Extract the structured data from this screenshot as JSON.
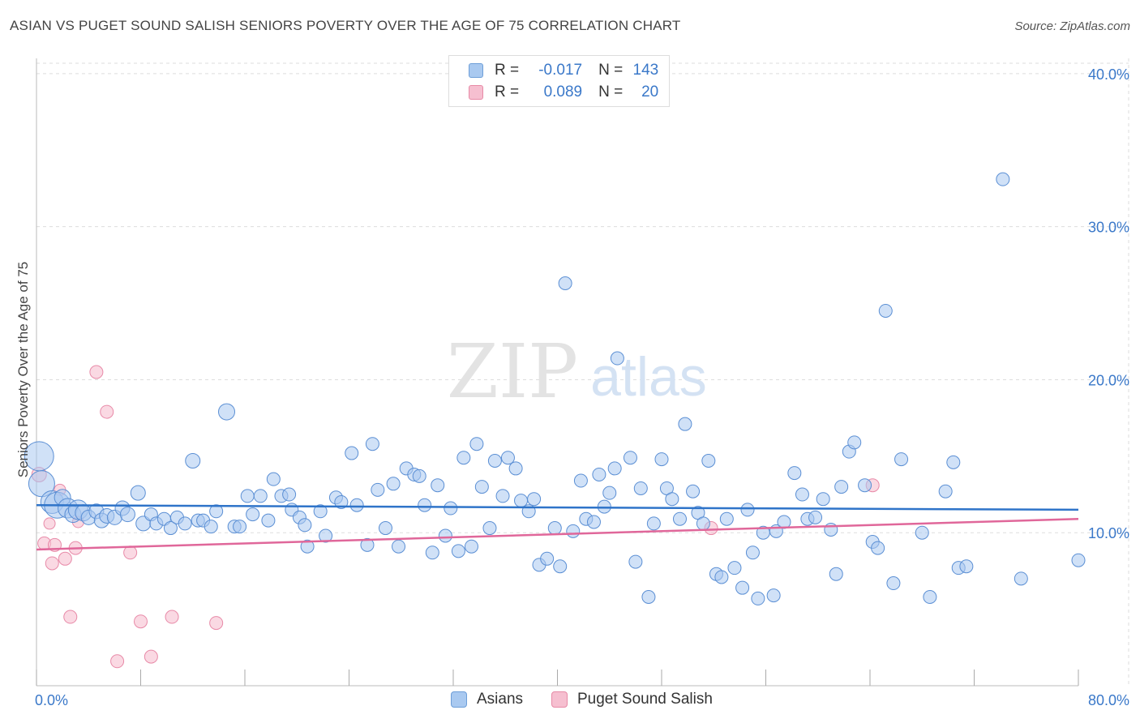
{
  "header": {
    "title": "ASIAN VS PUGET SOUND SALISH SENIORS POVERTY OVER THE AGE OF 75 CORRELATION CHART",
    "source": "Source: ZipAtlas.com"
  },
  "watermark": {
    "zip": "ZIP",
    "atlas": "atlas"
  },
  "legend": {
    "rows": [
      {
        "r_label": "R =",
        "r_value": "-0.017",
        "n_label": "N =",
        "n_value": "143",
        "color": "#a9c9f0",
        "border": "#6d9ed8"
      },
      {
        "r_label": "R =",
        "r_value": "0.089",
        "n_label": "N =",
        "n_value": "20",
        "color": "#f6bfd0",
        "border": "#e78aa6"
      }
    ]
  },
  "bottom_legend": {
    "asians": "Asians",
    "salish": "Puget Sound Salish"
  },
  "colors": {
    "asian_fill": "#a9c9f0",
    "asian_stroke": "#5b8fd4",
    "asian_line": "#2f74c9",
    "salish_fill": "#f6bfd0",
    "salish_stroke": "#e88aa8",
    "salish_line": "#e0679a",
    "tick_label": "#3a78c9",
    "grid": "#dddddd"
  },
  "chart_data": {
    "type": "scatter",
    "title": "ASIAN VS PUGET SOUND SALISH SENIORS POVERTY OVER THE AGE OF 75 CORRELATION CHART",
    "ylabel": "Seniors Poverty Over the Age of 75",
    "xlabel": "",
    "xlim": [
      0,
      80
    ],
    "ylim": [
      0,
      41
    ],
    "x_tick_labels": [
      "0.0%",
      "80.0%"
    ],
    "y_ticks": [
      10,
      20,
      30,
      40
    ],
    "y_tick_labels": [
      "10.0%",
      "20.0%",
      "30.0%",
      "40.0%"
    ],
    "grid": true,
    "legend_position": "top-center",
    "series": [
      {
        "name": "Asians",
        "r": -0.017,
        "n": 143,
        "trend": [
          [
            0,
            11.8
          ],
          [
            80,
            11.5
          ]
        ],
        "points": [
          [
            0.2,
            15.0,
            18
          ],
          [
            0.4,
            13.2,
            16
          ],
          [
            1.2,
            12.0,
            14
          ],
          [
            1.6,
            11.8,
            16
          ],
          [
            2.0,
            12.3,
            10
          ],
          [
            2.4,
            11.6,
            12
          ],
          [
            2.8,
            11.2,
            10
          ],
          [
            3.2,
            11.5,
            12
          ],
          [
            3.6,
            11.3,
            10
          ],
          [
            4.0,
            11.0,
            9
          ],
          [
            4.6,
            11.4,
            9
          ],
          [
            5.0,
            10.8,
            9
          ],
          [
            5.4,
            11.1,
            9
          ],
          [
            6.0,
            11.0,
            9
          ],
          [
            6.6,
            11.6,
            9
          ],
          [
            7.0,
            11.2,
            9
          ],
          [
            7.8,
            12.6,
            9
          ],
          [
            8.2,
            10.6,
            9
          ],
          [
            8.8,
            11.2,
            8
          ],
          [
            9.2,
            10.6,
            8
          ],
          [
            9.8,
            10.9,
            8
          ],
          [
            10.3,
            10.3,
            8
          ],
          [
            10.8,
            11.0,
            8
          ],
          [
            11.4,
            10.6,
            8
          ],
          [
            12.0,
            14.7,
            9
          ],
          [
            12.4,
            10.8,
            8
          ],
          [
            12.8,
            10.8,
            8
          ],
          [
            13.4,
            10.4,
            8
          ],
          [
            13.8,
            11.4,
            8
          ],
          [
            14.6,
            17.9,
            10
          ],
          [
            15.2,
            10.4,
            8
          ],
          [
            15.6,
            10.4,
            8
          ],
          [
            16.2,
            12.4,
            8
          ],
          [
            16.6,
            11.2,
            8
          ],
          [
            17.2,
            12.4,
            8
          ],
          [
            17.8,
            10.8,
            8
          ],
          [
            18.2,
            13.5,
            8
          ],
          [
            18.8,
            12.4,
            8
          ],
          [
            19.4,
            12.5,
            8
          ],
          [
            19.6,
            11.5,
            8
          ],
          [
            20.2,
            11.0,
            8
          ],
          [
            20.6,
            10.5,
            8
          ],
          [
            20.8,
            9.1,
            8
          ],
          [
            21.8,
            11.4,
            8
          ],
          [
            22.2,
            9.8,
            8
          ],
          [
            23.0,
            12.3,
            8
          ],
          [
            23.4,
            12.0,
            8
          ],
          [
            24.2,
            15.2,
            8
          ],
          [
            24.6,
            11.8,
            8
          ],
          [
            25.4,
            9.2,
            8
          ],
          [
            25.8,
            15.8,
            8
          ],
          [
            26.2,
            12.8,
            8
          ],
          [
            26.8,
            10.3,
            8
          ],
          [
            27.4,
            13.2,
            8
          ],
          [
            27.8,
            9.1,
            8
          ],
          [
            28.4,
            14.2,
            8
          ],
          [
            29.0,
            13.8,
            8
          ],
          [
            29.4,
            13.7,
            8
          ],
          [
            29.8,
            11.8,
            8
          ],
          [
            30.4,
            8.7,
            8
          ],
          [
            30.8,
            13.1,
            8
          ],
          [
            31.4,
            9.8,
            8
          ],
          [
            31.8,
            11.6,
            8
          ],
          [
            32.4,
            8.8,
            8
          ],
          [
            32.8,
            14.9,
            8
          ],
          [
            33.4,
            9.1,
            8
          ],
          [
            33.8,
            15.8,
            8
          ],
          [
            34.2,
            13.0,
            8
          ],
          [
            34.8,
            10.3,
            8
          ],
          [
            35.2,
            14.7,
            8
          ],
          [
            35.8,
            12.4,
            8
          ],
          [
            36.2,
            14.9,
            8
          ],
          [
            36.8,
            14.2,
            8
          ],
          [
            37.2,
            12.1,
            8
          ],
          [
            37.8,
            11.4,
            8
          ],
          [
            38.2,
            12.2,
            8
          ],
          [
            38.6,
            7.9,
            8
          ],
          [
            39.2,
            8.3,
            8
          ],
          [
            39.8,
            10.3,
            8
          ],
          [
            40.2,
            7.8,
            8
          ],
          [
            40.6,
            26.3,
            8
          ],
          [
            41.2,
            10.1,
            8
          ],
          [
            41.8,
            13.4,
            8
          ],
          [
            42.2,
            10.9,
            8
          ],
          [
            42.8,
            10.7,
            8
          ],
          [
            43.2,
            13.8,
            8
          ],
          [
            43.6,
            11.7,
            8
          ],
          [
            44.0,
            12.6,
            8
          ],
          [
            44.4,
            14.2,
            8
          ],
          [
            44.6,
            21.4,
            8
          ],
          [
            45.6,
            14.9,
            8
          ],
          [
            46.0,
            8.1,
            8
          ],
          [
            46.4,
            12.9,
            8
          ],
          [
            47.0,
            5.8,
            8
          ],
          [
            47.4,
            10.6,
            8
          ],
          [
            48.0,
            14.8,
            8
          ],
          [
            48.4,
            12.9,
            8
          ],
          [
            48.8,
            12.2,
            8
          ],
          [
            49.4,
            10.9,
            8
          ],
          [
            49.8,
            17.1,
            8
          ],
          [
            50.4,
            12.7,
            8
          ],
          [
            50.8,
            11.3,
            8
          ],
          [
            51.2,
            10.6,
            8
          ],
          [
            51.6,
            14.7,
            8
          ],
          [
            52.2,
            7.3,
            8
          ],
          [
            52.6,
            7.1,
            8
          ],
          [
            53.0,
            10.9,
            8
          ],
          [
            53.6,
            7.7,
            8
          ],
          [
            54.2,
            6.4,
            8
          ],
          [
            54.6,
            11.5,
            8
          ],
          [
            55.0,
            8.7,
            8
          ],
          [
            55.4,
            5.7,
            8
          ],
          [
            55.8,
            10.0,
            8
          ],
          [
            56.6,
            5.9,
            8
          ],
          [
            56.8,
            10.1,
            8
          ],
          [
            57.4,
            10.7,
            8
          ],
          [
            58.2,
            13.9,
            8
          ],
          [
            58.8,
            12.5,
            8
          ],
          [
            59.2,
            10.9,
            8
          ],
          [
            59.8,
            11.0,
            8
          ],
          [
            60.4,
            12.2,
            8
          ],
          [
            61.0,
            10.2,
            8
          ],
          [
            61.4,
            7.3,
            8
          ],
          [
            61.8,
            13.0,
            8
          ],
          [
            62.4,
            15.3,
            8
          ],
          [
            62.8,
            15.9,
            8
          ],
          [
            63.6,
            13.1,
            8
          ],
          [
            64.2,
            9.4,
            8
          ],
          [
            64.6,
            9.0,
            8
          ],
          [
            65.2,
            24.5,
            8
          ],
          [
            65.8,
            6.7,
            8
          ],
          [
            66.4,
            14.8,
            8
          ],
          [
            68.0,
            10.0,
            8
          ],
          [
            68.6,
            5.8,
            8
          ],
          [
            69.8,
            12.7,
            8
          ],
          [
            70.4,
            14.6,
            8
          ],
          [
            70.8,
            7.7,
            8
          ],
          [
            71.4,
            7.8,
            8
          ],
          [
            74.2,
            33.1,
            8
          ],
          [
            75.6,
            7.0,
            8
          ],
          [
            80.0,
            8.2,
            8
          ]
        ]
      },
      {
        "name": "Puget Sound Salish",
        "r": 0.089,
        "n": 20,
        "trend": [
          [
            0,
            8.9
          ],
          [
            80,
            10.9
          ]
        ],
        "points": [
          [
            0.2,
            13.8,
            9
          ],
          [
            0.6,
            9.3,
            8
          ],
          [
            1.0,
            10.6,
            7
          ],
          [
            1.2,
            8.0,
            8
          ],
          [
            1.4,
            9.2,
            8
          ],
          [
            1.8,
            12.8,
            7
          ],
          [
            2.2,
            8.3,
            8
          ],
          [
            2.6,
            4.5,
            8
          ],
          [
            3.0,
            9.0,
            8
          ],
          [
            3.2,
            10.7,
            7
          ],
          [
            4.6,
            20.5,
            8
          ],
          [
            5.4,
            17.9,
            8
          ],
          [
            6.2,
            1.6,
            8
          ],
          [
            7.2,
            8.7,
            8
          ],
          [
            8.0,
            4.2,
            8
          ],
          [
            8.8,
            1.9,
            8
          ],
          [
            10.4,
            4.5,
            8
          ],
          [
            13.8,
            4.1,
            8
          ],
          [
            51.8,
            10.3,
            8
          ],
          [
            64.2,
            13.1,
            8
          ]
        ]
      }
    ]
  }
}
